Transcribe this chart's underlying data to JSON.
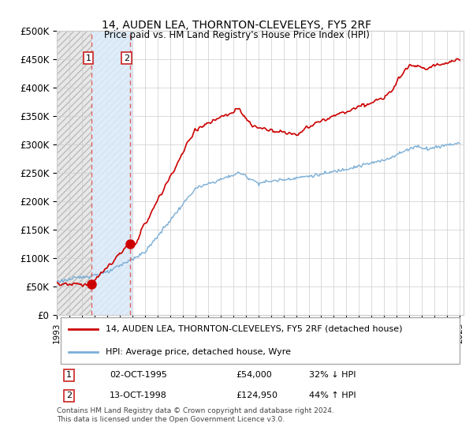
{
  "title": "14, AUDEN LEA, THORNTON-CLEVELEYS, FY5 2RF",
  "subtitle": "Price paid vs. HM Land Registry's House Price Index (HPI)",
  "ylim": [
    0,
    500000
  ],
  "yticks": [
    0,
    50000,
    100000,
    150000,
    200000,
    250000,
    300000,
    350000,
    400000,
    450000,
    500000
  ],
  "ytick_labels": [
    "£0",
    "£50K",
    "£100K",
    "£150K",
    "£200K",
    "£250K",
    "£300K",
    "£350K",
    "£400K",
    "£450K",
    "£500K"
  ],
  "xlim_start": 1993.0,
  "xlim_end": 2025.3,
  "hatch_end_year": 1999.0,
  "blue_shade_start": 1995.75,
  "blue_shade_end": 1999.0,
  "sale1_x": 1995.75,
  "sale1_y": 54000,
  "sale2_x": 1998.8,
  "sale2_y": 124950,
  "sale1_label": "02-OCT-1995",
  "sale1_price": "£54,000",
  "sale1_hpi": "32% ↓ HPI",
  "sale2_label": "13-OCT-1998",
  "sale2_price": "£124,950",
  "sale2_hpi": "44% ↑ HPI",
  "red_line_color": "#cc0000",
  "blue_line_color": "#7aaed6",
  "hatch_facecolor": "#e8e8e8",
  "hatch_edgecolor": "#bbbbbb",
  "blue_shade_color": "#ddeeff",
  "grid_color": "#cccccc",
  "background_color": "#ffffff",
  "dashed_line_color": "#e06060",
  "footnote": "Contains HM Land Registry data © Crown copyright and database right 2024.\nThis data is licensed under the Open Government Licence v3.0.",
  "legend_entry1": "14, AUDEN LEA, THORNTON-CLEVELEYS, FY5 2RF (detached house)",
  "legend_entry2": "HPI: Average price, detached house, Wyre"
}
